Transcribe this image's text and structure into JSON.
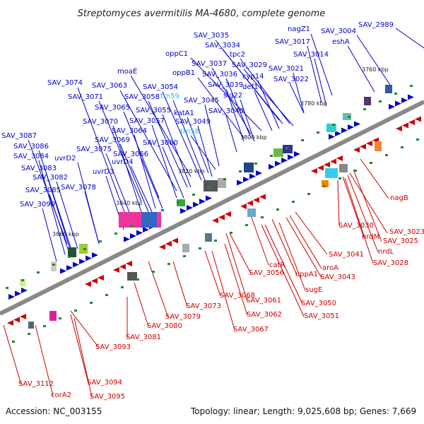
{
  "title": "Streptomyces avermitilis MA-4680, complete genome",
  "footer": {
    "accession": "Accession: NC_003155",
    "summary": "Topology: linear; Length: 9,025,608 bp; Genes: 7,669"
  },
  "colors": {
    "forward": "#0000cc",
    "reverse": "#cc0000",
    "rna": "#33bbdd",
    "axis": "#888888"
  },
  "ticks": [
    "3760 kbp",
    "3780 kbp",
    "3800 kbp",
    "3820 kbp",
    "3840 kbp",
    "3860 kbp"
  ],
  "labels_top": [
    "SAV_2989",
    "SAV_3004",
    "eshA",
    "nagZ1",
    "SAV_3017",
    "SAV_3014",
    "SAV_3035",
    "SAV_3034",
    "oppC1",
    "tpc2",
    "SAV_3029",
    "SAV_3037",
    "SAV_3021",
    "oppB1",
    "cyp14",
    "SAV_3036",
    "SAV_3022",
    "moaE",
    "SAV_3039",
    "def1",
    "SAV_3074",
    "SAV_3063",
    "SAV_3054",
    "SAV_3071",
    "SAV_3058",
    "trn59",
    "SAV_3045",
    "sig22",
    "SAV_3065",
    "SAV_3055",
    "katA1",
    "SAV_3040",
    "SAV_3070",
    "SAV_3057",
    "SAV_3049",
    "trn58",
    "SAV_3087",
    "SAV_3064",
    "SAV_3069",
    "SAV_3086",
    "SAV_3060",
    "SAV_3075",
    "SAV_3084",
    "uvrD2",
    "SAV_3066",
    "uvrD4",
    "SAV_3083",
    "uvrD3",
    "SAV_3082",
    "SAV_3085",
    "SAV_3078",
    "SAV_3090"
  ],
  "labels_bottom": [
    "nagB",
    "SAV_3030",
    "SAV_3023",
    "nrdM",
    "SAV_3025",
    "nrdL",
    "SAV_3028",
    "SAV_3041",
    "catR",
    "aroA",
    "SAV_3056",
    "oppA1",
    "SAV_3043",
    "sugE",
    "SAV_3068",
    "SAV_3061",
    "SAV_3050",
    "SAV_3073",
    "SAV_3062",
    "SAV_3051",
    "SAV_3079",
    "SAV_3067",
    "SAV_3080",
    "SAV_3081",
    "SAV_3093",
    "SAV_3112",
    "SAV_3094",
    "corA2",
    "SAV_3095"
  ]
}
